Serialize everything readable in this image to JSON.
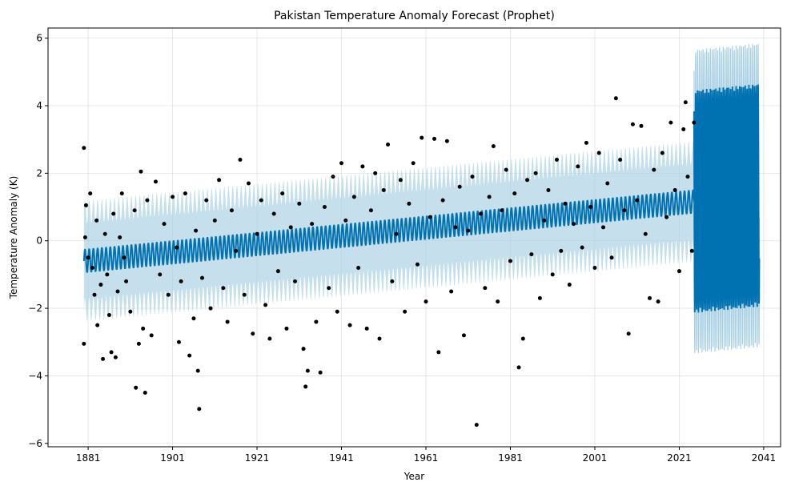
{
  "chart_data": {
    "type": "scatter",
    "title": "Pakistan Temperature Anomaly Forecast (Prophet)",
    "xlabel": "Year",
    "ylabel": "Temperature Anomaly (K)",
    "xlim": [
      1871.5,
      2045
    ],
    "ylim": [
      -6.1,
      6.3
    ],
    "x_ticks": [
      1881,
      1901,
      1921,
      1941,
      1961,
      1981,
      2001,
      2021,
      2041
    ],
    "y_ticks": [
      -6,
      -4,
      -2,
      0,
      2,
      4,
      6
    ],
    "grid": true,
    "colors": {
      "observed": "#000000",
      "forecast": "#0072B2",
      "uncertainty": "#a6cee3"
    },
    "series": [
      {
        "kind": "observed-points",
        "points": [
          [
            1880.0,
            2.75
          ],
          [
            1880.0,
            -3.05
          ],
          [
            1880.3,
            0.1
          ],
          [
            1880.5,
            1.05
          ],
          [
            1881.0,
            -0.5
          ],
          [
            1881.5,
            1.4
          ],
          [
            1882.0,
            -0.8
          ],
          [
            1882.5,
            -1.6
          ],
          [
            1883.0,
            0.6
          ],
          [
            1883.2,
            -2.5
          ],
          [
            1884.0,
            -1.3
          ],
          [
            1884.5,
            -3.5
          ],
          [
            1885.0,
            0.2
          ],
          [
            1885.5,
            -1.0
          ],
          [
            1886.0,
            -2.2
          ],
          [
            1886.5,
            -3.3
          ],
          [
            1887.0,
            0.8
          ],
          [
            1887.5,
            -3.45
          ],
          [
            1888.0,
            -1.5
          ],
          [
            1888.5,
            0.1
          ],
          [
            1889.0,
            1.4
          ],
          [
            1889.5,
            -0.5
          ],
          [
            1890.0,
            -1.2
          ],
          [
            1891.0,
            -2.1
          ],
          [
            1892.0,
            0.9
          ],
          [
            1892.3,
            -4.35
          ],
          [
            1893.0,
            -3.05
          ],
          [
            1893.5,
            2.05
          ],
          [
            1894.0,
            -2.6
          ],
          [
            1894.5,
            -4.5
          ],
          [
            1895.0,
            1.2
          ],
          [
            1896.0,
            -2.8
          ],
          [
            1897.0,
            1.75
          ],
          [
            1898.0,
            -1.0
          ],
          [
            1899.0,
            0.5
          ],
          [
            1900.0,
            -1.6
          ],
          [
            1901.0,
            1.3
          ],
          [
            1902.0,
            -0.2
          ],
          [
            1902.5,
            -3.0
          ],
          [
            1903.0,
            -1.2
          ],
          [
            1904.0,
            1.4
          ],
          [
            1905.0,
            -3.4
          ],
          [
            1906.0,
            -2.3
          ],
          [
            1906.5,
            0.3
          ],
          [
            1907.0,
            -3.85
          ],
          [
            1907.3,
            -4.98
          ],
          [
            1908.0,
            -1.1
          ],
          [
            1909.0,
            1.2
          ],
          [
            1910.0,
            -2.0
          ],
          [
            1911.0,
            0.6
          ],
          [
            1912.0,
            1.8
          ],
          [
            1913.0,
            -1.4
          ],
          [
            1914.0,
            -2.4
          ],
          [
            1915.0,
            0.9
          ],
          [
            1916.0,
            -0.3
          ],
          [
            1917.0,
            2.4
          ],
          [
            1918.0,
            -1.6
          ],
          [
            1919.0,
            1.7
          ],
          [
            1920.0,
            -2.75
          ],
          [
            1921.0,
            0.2
          ],
          [
            1922.0,
            1.2
          ],
          [
            1923.0,
            -1.9
          ],
          [
            1924.0,
            -2.9
          ],
          [
            1925.0,
            0.8
          ],
          [
            1926.0,
            -0.9
          ],
          [
            1927.0,
            1.4
          ],
          [
            1928.0,
            -2.6
          ],
          [
            1929.0,
            0.4
          ],
          [
            1930.0,
            -1.2
          ],
          [
            1931.0,
            1.1
          ],
          [
            1932.0,
            -3.2
          ],
          [
            1932.5,
            -4.32
          ],
          [
            1933.0,
            -3.85
          ],
          [
            1934.0,
            0.5
          ],
          [
            1935.0,
            -2.4
          ],
          [
            1936.0,
            -3.9
          ],
          [
            1937.0,
            1.0
          ],
          [
            1938.0,
            -1.4
          ],
          [
            1939.0,
            1.9
          ],
          [
            1940.0,
            -2.1
          ],
          [
            1941.0,
            2.3
          ],
          [
            1942.0,
            0.6
          ],
          [
            1943.0,
            -2.5
          ],
          [
            1944.0,
            1.3
          ],
          [
            1945.0,
            -0.8
          ],
          [
            1946.0,
            2.2
          ],
          [
            1947.0,
            -2.6
          ],
          [
            1948.0,
            0.9
          ],
          [
            1949.0,
            2.0
          ],
          [
            1950.0,
            -2.9
          ],
          [
            1951.0,
            1.5
          ],
          [
            1952.0,
            2.85
          ],
          [
            1953.0,
            -1.2
          ],
          [
            1954.0,
            0.2
          ],
          [
            1955.0,
            1.8
          ],
          [
            1956.0,
            -2.1
          ],
          [
            1957.0,
            1.1
          ],
          [
            1958.0,
            2.3
          ],
          [
            1959.0,
            -0.7
          ],
          [
            1960.0,
            3.05
          ],
          [
            1961.0,
            -1.8
          ],
          [
            1962.0,
            0.7
          ],
          [
            1963.0,
            3.02
          ],
          [
            1964.0,
            -3.3
          ],
          [
            1965.0,
            1.2
          ],
          [
            1966.0,
            2.95
          ],
          [
            1967.0,
            -1.5
          ],
          [
            1968.0,
            0.4
          ],
          [
            1969.0,
            1.6
          ],
          [
            1970.0,
            -2.8
          ],
          [
            1971.0,
            0.3
          ],
          [
            1972.0,
            1.9
          ],
          [
            1973.0,
            -5.45
          ],
          [
            1974.0,
            0.8
          ],
          [
            1975.0,
            -1.4
          ],
          [
            1976.0,
            1.3
          ],
          [
            1977.0,
            2.8
          ],
          [
            1978.0,
            -1.8
          ],
          [
            1979.0,
            0.9
          ],
          [
            1980.0,
            2.1
          ],
          [
            1981.0,
            -0.6
          ],
          [
            1982.0,
            1.4
          ],
          [
            1983.0,
            -3.75
          ],
          [
            1984.0,
            -2.9
          ],
          [
            1985.0,
            1.8
          ],
          [
            1986.0,
            -0.4
          ],
          [
            1987.0,
            2.0
          ],
          [
            1988.0,
            -1.7
          ],
          [
            1989.0,
            0.6
          ],
          [
            1990.0,
            1.5
          ],
          [
            1991.0,
            -1.0
          ],
          [
            1992.0,
            2.4
          ],
          [
            1993.0,
            -0.3
          ],
          [
            1994.0,
            1.1
          ],
          [
            1995.0,
            -1.3
          ],
          [
            1996.0,
            0.5
          ],
          [
            1997.0,
            2.2
          ],
          [
            1998.0,
            -0.2
          ],
          [
            1999.0,
            2.9
          ],
          [
            2000.0,
            1.0
          ],
          [
            2001.0,
            -0.8
          ],
          [
            2002.0,
            2.6
          ],
          [
            2003.0,
            0.4
          ],
          [
            2004.0,
            1.7
          ],
          [
            2005.0,
            -0.5
          ],
          [
            2006.0,
            4.22
          ],
          [
            2007.0,
            2.4
          ],
          [
            2008.0,
            0.9
          ],
          [
            2009.0,
            -2.75
          ],
          [
            2010.0,
            3.45
          ],
          [
            2011.0,
            1.2
          ],
          [
            2012.0,
            3.4
          ],
          [
            2013.0,
            0.2
          ],
          [
            2014.0,
            -1.7
          ],
          [
            2015.0,
            2.1
          ],
          [
            2016.0,
            -1.8
          ],
          [
            2017.0,
            2.6
          ],
          [
            2018.0,
            0.7
          ],
          [
            2019.0,
            3.5
          ],
          [
            2020.0,
            1.5
          ],
          [
            2021.0,
            -0.9
          ],
          [
            2022.0,
            3.3
          ],
          [
            2022.5,
            4.1
          ],
          [
            2023.0,
            1.9
          ],
          [
            2024.0,
            -0.3
          ],
          [
            2024.5,
            3.5
          ]
        ]
      },
      {
        "kind": "forecast-line",
        "trend_start_year": 1880,
        "trend_start_value": -0.6,
        "trend_end_year": 2040,
        "trend_end_value": 1.35
      }
    ]
  }
}
